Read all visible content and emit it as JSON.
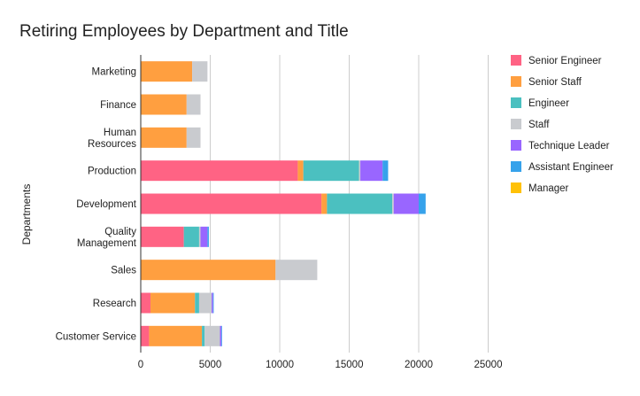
{
  "chart_data": {
    "type": "bar",
    "orientation": "horizontal",
    "stacked": true,
    "title": "Retiring Employees by Department and Title",
    "xlabel": "",
    "ylabel": "Departments",
    "xlim": [
      0,
      25000
    ],
    "xticks": [
      "0",
      "5000",
      "10000",
      "15000",
      "20000",
      "25000"
    ],
    "grid": true,
    "legend_position": "right",
    "categories": [
      [
        "Marketing"
      ],
      [
        "Finance"
      ],
      [
        "Human",
        "Resources"
      ],
      [
        "Production"
      ],
      [
        "Development"
      ],
      [
        "Quality",
        "Management"
      ],
      [
        "Sales"
      ],
      [
        "Research"
      ],
      [
        "Customer Service"
      ]
    ],
    "series": [
      {
        "name": "Senior Engineer",
        "color": "#ff6384",
        "values": [
          0,
          0,
          0,
          11300,
          13000,
          3100,
          0,
          700,
          600
        ]
      },
      {
        "name": "Senior Staff",
        "color": "#ff9f40",
        "values": [
          3700,
          3300,
          3300,
          400,
          400,
          0,
          9700,
          3200,
          3800
        ]
      },
      {
        "name": "Engineer",
        "color": "#4bc0c0",
        "values": [
          0,
          0,
          0,
          4000,
          4700,
          1100,
          0,
          300,
          200
        ]
      },
      {
        "name": "Staff",
        "color": "#c9cbcf",
        "values": [
          1100,
          1000,
          1000,
          100,
          100,
          100,
          3000,
          900,
          1100
        ]
      },
      {
        "name": "Technique Leader",
        "color": "#9966ff",
        "values": [
          0,
          0,
          0,
          1600,
          1800,
          500,
          0,
          100,
          100
        ]
      },
      {
        "name": "Assistant Engineer",
        "color": "#36a2eb",
        "values": [
          0,
          0,
          0,
          400,
          500,
          100,
          0,
          50,
          50
        ]
      },
      {
        "name": "Manager",
        "color": "#ffc107",
        "values": [
          0,
          0,
          0,
          0,
          0,
          0,
          0,
          0,
          0
        ]
      }
    ]
  }
}
